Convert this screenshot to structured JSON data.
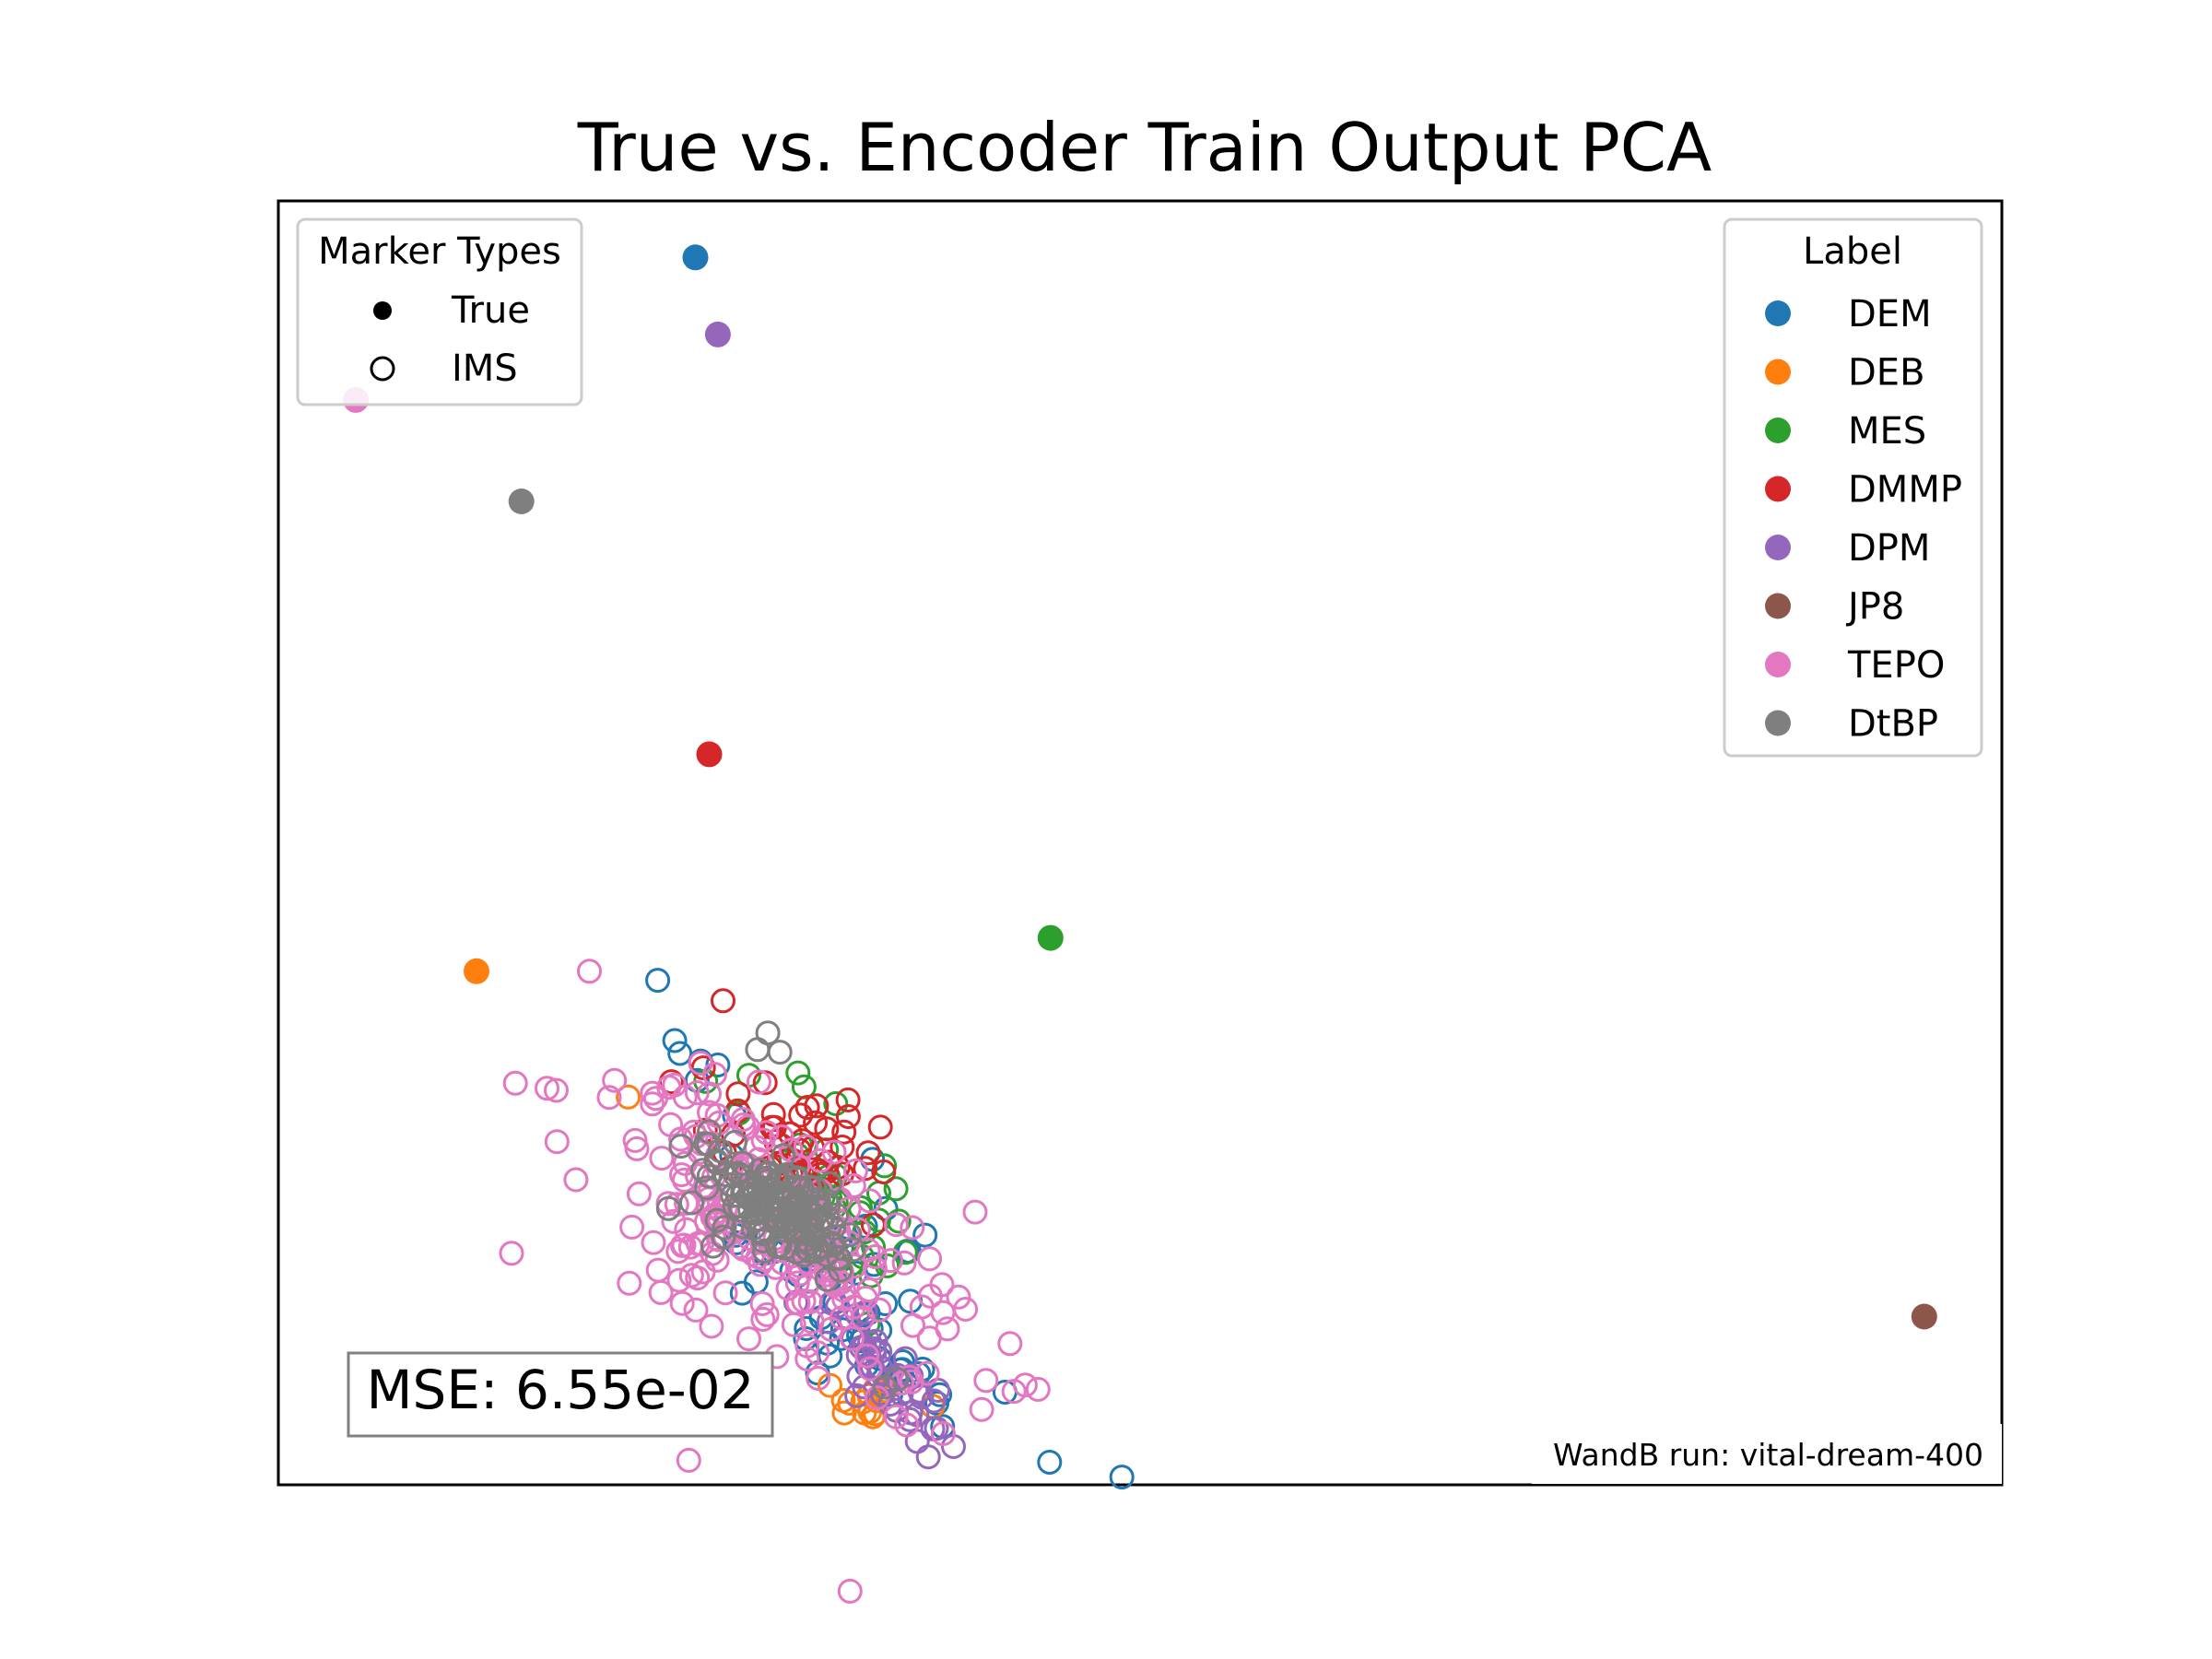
{
  "chart_data": {
    "type": "scatter",
    "title": "True vs. Encoder Train Output PCA",
    "xlabel": "",
    "ylabel": "",
    "axes_visible": false,
    "grid": false,
    "marker_legend": {
      "title": "Marker Types",
      "placement": "top-left",
      "entries": [
        {
          "label": "True",
          "style": "filled"
        },
        {
          "label": "IMS",
          "style": "hollow"
        }
      ]
    },
    "label_legend": {
      "title": "Label",
      "placement": "top-right",
      "entries": [
        {
          "label": "DEM",
          "color": "#1f77b4"
        },
        {
          "label": "DEB",
          "color": "#ff7f0e"
        },
        {
          "label": "MES",
          "color": "#2ca02c"
        },
        {
          "label": "DMMP",
          "color": "#d62728"
        },
        {
          "label": "DPM",
          "color": "#9467bd"
        },
        {
          "label": "JP8",
          "color": "#8c564b"
        },
        {
          "label": "TEPO",
          "color": "#e377c2"
        },
        {
          "label": "DtBP",
          "color": "#7f7f7f"
        }
      ]
    },
    "true_points": [
      {
        "label": "DEM",
        "x": 0.242,
        "y": 0.956
      },
      {
        "label": "DPM",
        "x": 0.255,
        "y": 0.896
      },
      {
        "label": "TEPO",
        "x": 0.045,
        "y": 0.845
      },
      {
        "label": "DtBP",
        "x": 0.141,
        "y": 0.766
      },
      {
        "label": "DMMP",
        "x": 0.25,
        "y": 0.569
      },
      {
        "label": "MES",
        "x": 0.448,
        "y": 0.426
      },
      {
        "label": "DEB",
        "x": 0.115,
        "y": 0.4
      },
      {
        "label": "JP8",
        "x": 0.955,
        "y": 0.131
      }
    ],
    "ims_clusters": [
      {
        "label": "DEM",
        "color": "#1f77b4",
        "center": [
          0.335,
          0.14
        ],
        "spread": [
          0.03,
          0.13
        ],
        "count": 60,
        "outliers": [
          [
            0.23,
            0.346
          ],
          [
            0.233,
            0.336
          ],
          [
            0.245,
            0.33
          ],
          [
            0.255,
            0.327
          ],
          [
            0.243,
            0.315
          ]
        ]
      },
      {
        "label": "DEB",
        "color": "#ff7f0e",
        "center": [
          0.338,
          0.065
        ],
        "spread": [
          0.012,
          0.015
        ],
        "count": 12,
        "outliers": [
          [
            0.203,
            0.302
          ],
          [
            0.34,
            0.056
          ],
          [
            0.345,
            0.053
          ]
        ]
      },
      {
        "label": "MES",
        "color": "#2ca02c",
        "center": [
          0.33,
          0.21
        ],
        "spread": [
          0.02,
          0.09
        ],
        "count": 40,
        "outliers": [
          [
            0.273,
            0.319
          ],
          [
            0.305,
            0.31
          ]
        ]
      },
      {
        "label": "DMMP",
        "color": "#d62728",
        "center": [
          0.3,
          0.27
        ],
        "spread": [
          0.03,
          0.06
        ],
        "count": 45,
        "outliers": [
          [
            0.258,
            0.377
          ],
          [
            0.228,
            0.314
          ],
          [
            0.29,
            0.25
          ]
        ]
      },
      {
        "label": "DPM",
        "color": "#9467bd",
        "center": [
          0.35,
          0.09
        ],
        "spread": [
          0.01,
          0.06
        ],
        "count": 45,
        "outliers": []
      },
      {
        "label": "TEPO",
        "color": "#e377c2",
        "center": [
          0.29,
          0.195
        ],
        "spread": [
          0.04,
          0.13
        ],
        "count": 230,
        "outliers": [
          [
            0.195,
            0.315
          ],
          [
            0.217,
            0.305
          ],
          [
            0.219,
            0.301
          ],
          [
            0.236,
            0.302
          ],
          [
            0.25,
            0.29
          ],
          [
            0.292,
            0.271
          ]
        ]
      },
      {
        "label": "DtBP",
        "color": "#7f7f7f",
        "center": [
          0.29,
          0.215
        ],
        "spread": [
          0.02,
          0.045
        ],
        "count": 150,
        "outliers": [
          [
            0.284,
            0.352
          ],
          [
            0.278,
            0.339
          ],
          [
            0.291,
            0.337
          ],
          [
            0.25,
            0.275
          ],
          [
            0.359,
            0.082
          ],
          [
            0.352,
            0.076
          ]
        ]
      }
    ],
    "annotation": "MSE: 6.55e-02",
    "footer": "WandB run: vital-dream-400"
  }
}
